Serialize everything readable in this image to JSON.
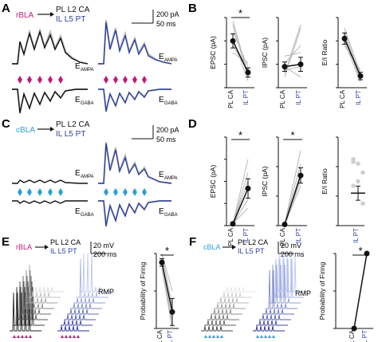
{
  "panels": {
    "A": {
      "letter": "A",
      "source": "rBLA",
      "target1": "PL L2 CA",
      "target2": "IL L5 PT",
      "scale_amp": "200 pA",
      "scale_time": "50 ms",
      "label_ampa": "E",
      "label_ampa_sub": "AMPA",
      "label_gaba": "E",
      "label_gaba_sub": "GABA"
    },
    "B": {
      "letter": "B",
      "sig": "*",
      "ylabel1": "EPSC (pA)",
      "ylabel2": "IPSC (pA)",
      "ylabel3": "E/I Ratio",
      "cat1": "PL CA",
      "cat2": "IL PT"
    },
    "C": {
      "letter": "C",
      "source": "cBLA",
      "target1": "PL L2 CA",
      "target2": "IL L5 PT",
      "scale_amp": "200 pA",
      "scale_time": "50 ms",
      "label_ampa": "E",
      "label_ampa_sub": "AMPA",
      "label_gaba": "E",
      "label_gaba_sub": "GABA"
    },
    "D": {
      "letter": "D",
      "sig1": "*",
      "sig2": "*",
      "ylabel1": "EPSC (pA)",
      "ylabel2": "IPSC (pA)",
      "ylabel3": "E/I Ratio",
      "cat1": "PL CA",
      "cat2": "IL PT"
    },
    "E": {
      "letter": "E",
      "source": "rBLA",
      "target1": "PL L2 CA",
      "target2": "IL L5 PT",
      "scale_amp": "20 mV",
      "scale_time": "200 ms",
      "rmp": "RMP",
      "sig": "*",
      "ylabel": "Probability of Firing",
      "cat1": "PL CA",
      "cat2": "IL PT"
    },
    "F": {
      "letter": "F",
      "source": "cBLA",
      "target1": "PL L2 CA",
      "target2": "IL L5 PT",
      "scale_amp": "20 mV",
      "scale_time": "200 ms",
      "rmp": "RMP",
      "sig": "*",
      "ylabel": "Probability of Firing",
      "cat1": "PL CA",
      "cat2": "IL PT"
    }
  },
  "colors": {
    "rbla": "#c2187c",
    "cbla": "#2a9fd8",
    "il_pt": "#2c3e9e",
    "pl_ca": "#111111",
    "gray": "#b8b8b8"
  },
  "chart_data": [
    {
      "type": "scatter",
      "panel": "B1",
      "ylabel": "EPSC (pA)",
      "categories": [
        "PL CA",
        "IL PT"
      ],
      "ylim": [
        0,
        600
      ],
      "yticks": [
        0,
        200,
        400,
        600
      ],
      "means": [
        400,
        130
      ],
      "sem": [
        60,
        40
      ]
    },
    {
      "type": "scatter",
      "panel": "B2",
      "ylabel": "IPSC (pA)",
      "categories": [
        "PL CA",
        "IL PT"
      ],
      "ylim": [
        0,
        1500
      ],
      "yticks": [
        0,
        500,
        1000,
        1500
      ],
      "means": [
        450,
        500
      ],
      "sem": [
        100,
        150
      ]
    },
    {
      "type": "scatter",
      "panel": "B3",
      "ylabel": "E/I Ratio",
      "categories": [
        "PL CA",
        "IL PT"
      ],
      "ylim": [
        0,
        1.5
      ],
      "yticks": [
        0.0,
        0.5,
        1.0,
        1.5
      ],
      "means": [
        1.05,
        0.25
      ],
      "sem": [
        0.12,
        0.08
      ]
    },
    {
      "type": "scatter",
      "panel": "D1",
      "ylabel": "EPSC (pA)",
      "categories": [
        "PL CA",
        "IL PT"
      ],
      "ylim": [
        0,
        1000
      ],
      "yticks": [
        0,
        250,
        500,
        750,
        1000
      ],
      "means": [
        20,
        420
      ],
      "sem": [
        10,
        110
      ]
    },
    {
      "type": "scatter",
      "panel": "D2",
      "ylabel": "IPSC (pA)",
      "categories": [
        "PL CA",
        "IL PT"
      ],
      "ylim": [
        0,
        1500
      ],
      "yticks": [
        0,
        500,
        1000,
        1500
      ],
      "means": [
        20,
        850
      ],
      "sem": [
        10,
        130
      ]
    },
    {
      "type": "scatter",
      "panel": "D3",
      "ylabel": "E/I Ratio",
      "categories": [
        "IL PT"
      ],
      "ylim": [
        0,
        1.5
      ],
      "yticks": [
        0.0,
        0.5,
        1.0,
        1.5
      ],
      "means": [
        0.55
      ],
      "sem": [
        0.12
      ]
    },
    {
      "type": "scatter",
      "panel": "E",
      "ylabel": "Probability of Firing",
      "categories": [
        "PL CA",
        "IL PT"
      ],
      "ylim": [
        0,
        1.0
      ],
      "yticks": [
        0,
        0.5,
        1.0
      ],
      "means": [
        0.88,
        0.22
      ],
      "sem": [
        0.05,
        0.18
      ]
    },
    {
      "type": "scatter",
      "panel": "F",
      "ylabel": "Probability of Firing",
      "categories": [
        "PL CA",
        "IL PT"
      ],
      "ylim": [
        0,
        1.0
      ],
      "yticks": [
        0,
        0.5,
        1.0
      ],
      "means": [
        0.0,
        1.0
      ],
      "sem": [
        0,
        0
      ]
    }
  ]
}
